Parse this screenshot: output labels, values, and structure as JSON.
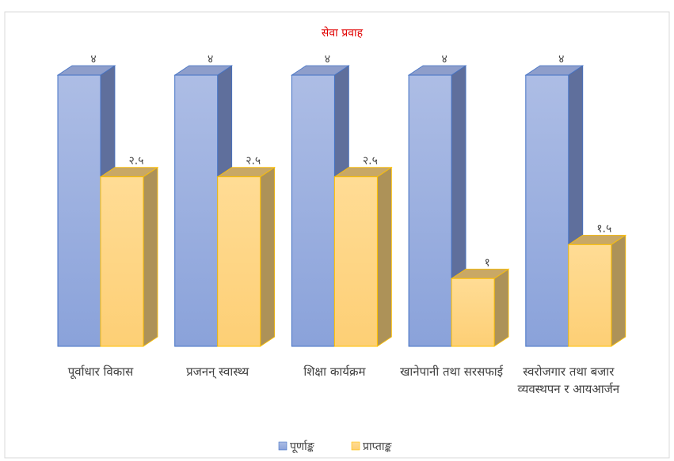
{
  "chart_data": {
    "type": "bar3d",
    "title": "सेवा प्रवाह",
    "categories": [
      "पूर्वाधार विकास",
      "प्रजनन् स्वास्थ्य",
      "शिक्षा कार्यक्रम",
      "खानेपानी तथा सरसफाई",
      "स्वरोजगार तथा बजार व्यवस्थपन र आयआर्जन"
    ],
    "ylim": [
      0,
      4
    ],
    "series": [
      {
        "name": "पूर्णाङ्क",
        "color": "#8fa6dc",
        "values": [
          4,
          4,
          4,
          4,
          4
        ],
        "value_labels": [
          "४",
          "४",
          "४",
          "४",
          "४"
        ]
      },
      {
        "name": "प्राप्ताङ्क",
        "color": "#fed584",
        "values": [
          2.5,
          2.5,
          2.5,
          1,
          1.5
        ],
        "value_labels": [
          "२.५",
          "२.५",
          "२.५",
          "१",
          "१.५"
        ]
      }
    ]
  }
}
